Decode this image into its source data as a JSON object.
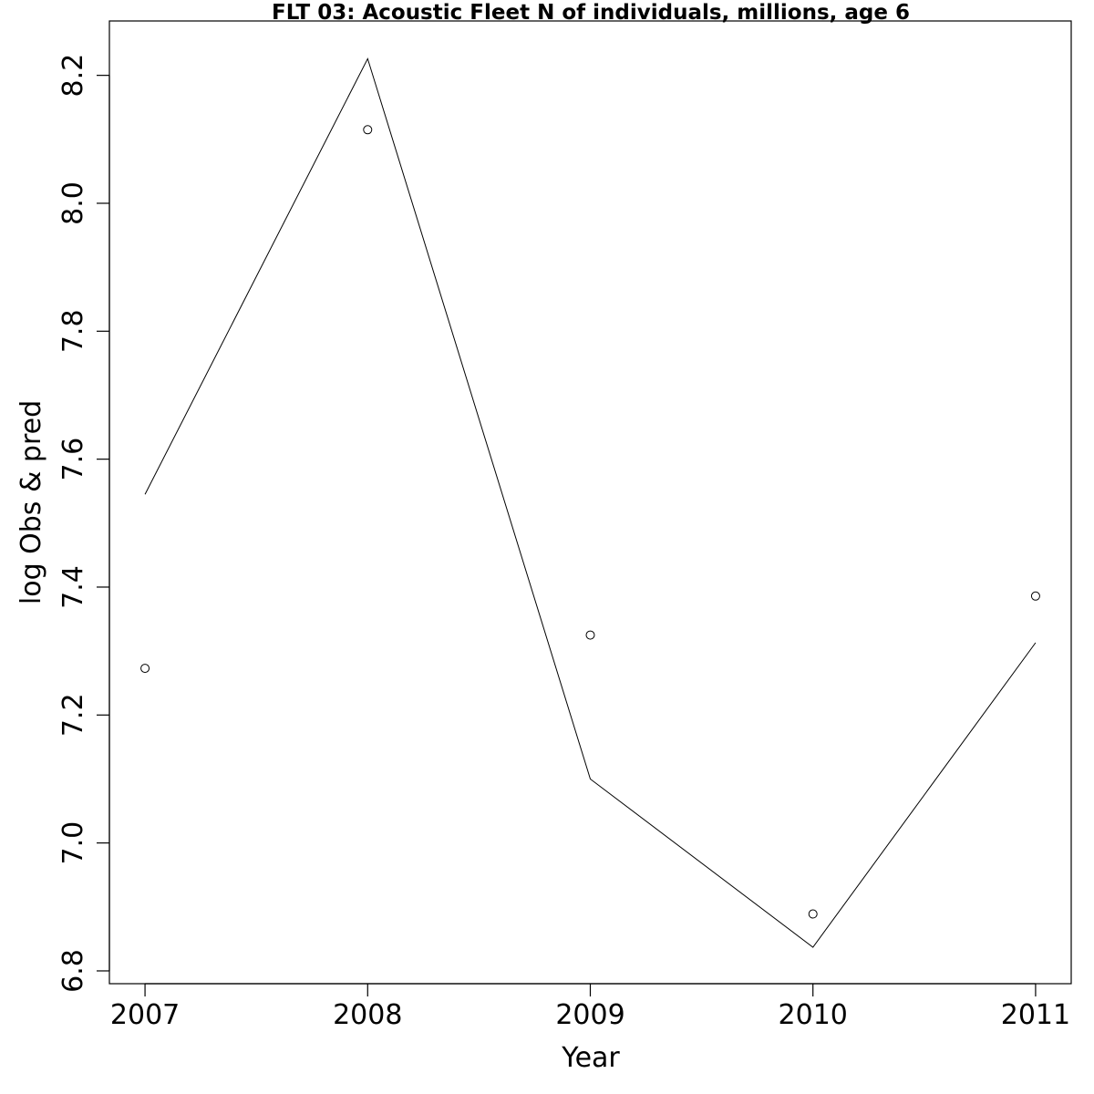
{
  "chart_data": {
    "type": "line",
    "title": "FLT 03: Acoustic Fleet  N of individuals, millions, age 6",
    "xlabel": "Year",
    "ylabel": "log Obs & pred",
    "x": [
      2007,
      2008,
      2009,
      2010,
      2011
    ],
    "xlim": [
      2006.84,
      2011.16
    ],
    "ylim": [
      6.78,
      8.285
    ],
    "x_ticks": [
      "2007",
      "2008",
      "2009",
      "2010",
      "2011"
    ],
    "y_ticks": [
      "6.8",
      "7.0",
      "7.2",
      "7.4",
      "7.6",
      "7.8",
      "8.0",
      "8.2"
    ],
    "grid": false,
    "series": [
      {
        "style": "line",
        "values": [
          7.545,
          8.226,
          7.1,
          6.837,
          7.313
        ]
      },
      {
        "style": "points",
        "values": [
          7.273,
          8.115,
          7.325,
          6.889,
          7.386
        ]
      }
    ]
  }
}
